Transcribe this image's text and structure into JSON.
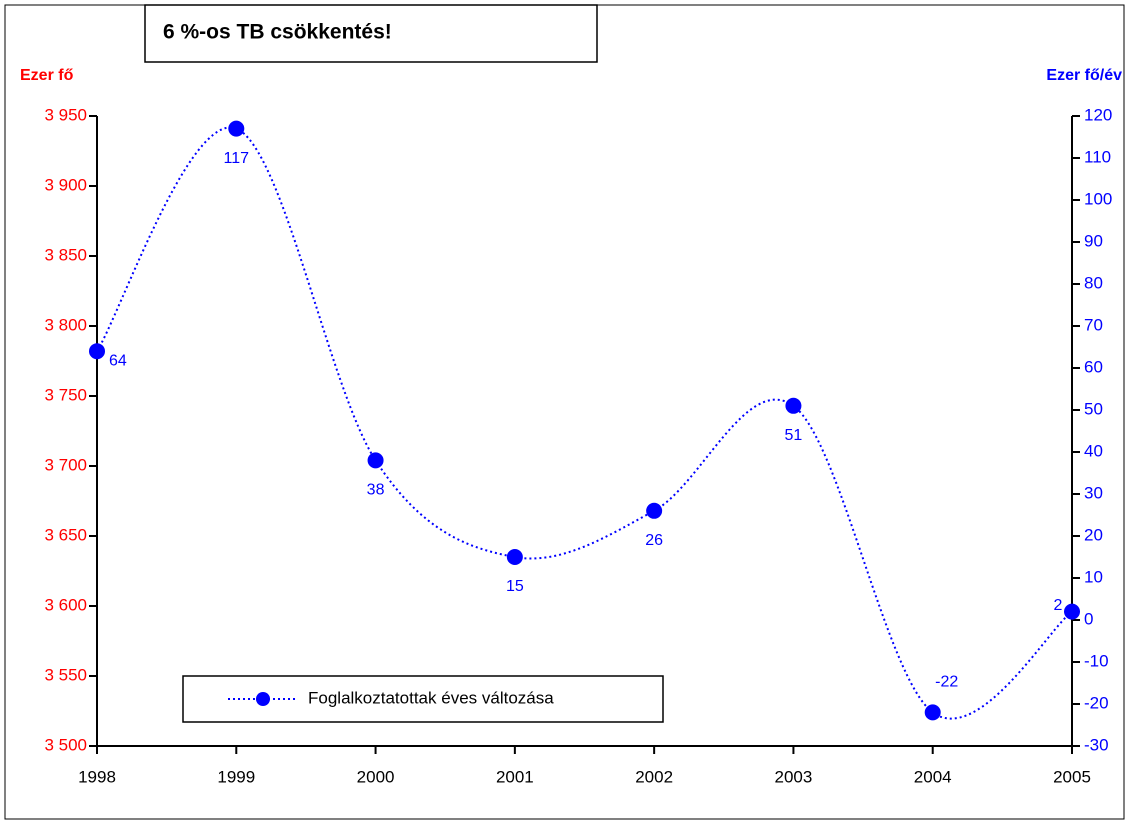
{
  "chart_data": {
    "type": "line",
    "annotation": "6 %-os TB csökkentés!",
    "ylabel": "Ezer fő",
    "y2label": "Ezer fő/év",
    "categories": [
      "1998",
      "1999",
      "2000",
      "2001",
      "2002",
      "2003",
      "2004",
      "2005"
    ],
    "series": [
      {
        "name": "Foglalkoztatottak éves változása",
        "color": "#0000ff",
        "axis": "y2",
        "values": [
          64,
          117,
          38,
          15,
          26,
          51,
          -22,
          2
        ]
      }
    ],
    "ylim": [
      3500,
      3950
    ],
    "yticks": [
      {
        "value": 3500,
        "label": "3 500"
      },
      {
        "value": 3550,
        "label": "3 550"
      },
      {
        "value": 3600,
        "label": "3 600"
      },
      {
        "value": 3650,
        "label": "3 650"
      },
      {
        "value": 3700,
        "label": "3 700"
      },
      {
        "value": 3750,
        "label": "3 750"
      },
      {
        "value": 3800,
        "label": "3 800"
      },
      {
        "value": 3850,
        "label": "3 850"
      },
      {
        "value": 3900,
        "label": "3 900"
      },
      {
        "value": 3950,
        "label": "3 950"
      }
    ],
    "y2lim": [
      -30,
      120
    ],
    "y2ticks": [
      -30,
      -20,
      -10,
      0,
      10,
      20,
      30,
      40,
      50,
      60,
      70,
      80,
      90,
      100,
      110,
      120
    ],
    "ycolor": "#ff0000",
    "y2color": "#0000ff"
  }
}
